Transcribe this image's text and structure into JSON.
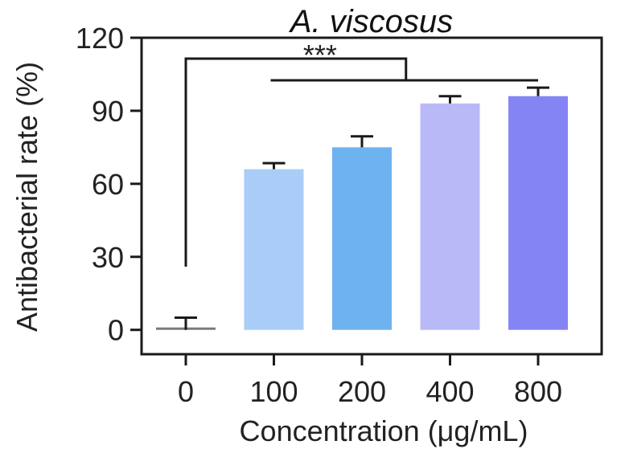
{
  "chart_data": {
    "type": "bar",
    "title": "A. viscosus",
    "xlabel": "Concentration (μg/mL)",
    "ylabel": "Antibacterial rate (%)",
    "categories": [
      "0",
      "100",
      "200",
      "400",
      "800"
    ],
    "values": [
      0,
      66,
      75,
      93,
      96
    ],
    "errors": [
      5,
      2.5,
      4.5,
      3,
      3.5
    ],
    "ylim": [
      -10,
      120
    ],
    "yticks": [
      0,
      30,
      60,
      90,
      120
    ],
    "bar_colors": [
      "#7a7a7a",
      "#a9cdf6",
      "#6fb2f0",
      "#b9b9f7",
      "#8584f4"
    ],
    "significance": {
      "label": "***",
      "from": "0",
      "to": [
        "100",
        "200",
        "400",
        "800"
      ]
    },
    "grid": false,
    "legend": "none"
  }
}
